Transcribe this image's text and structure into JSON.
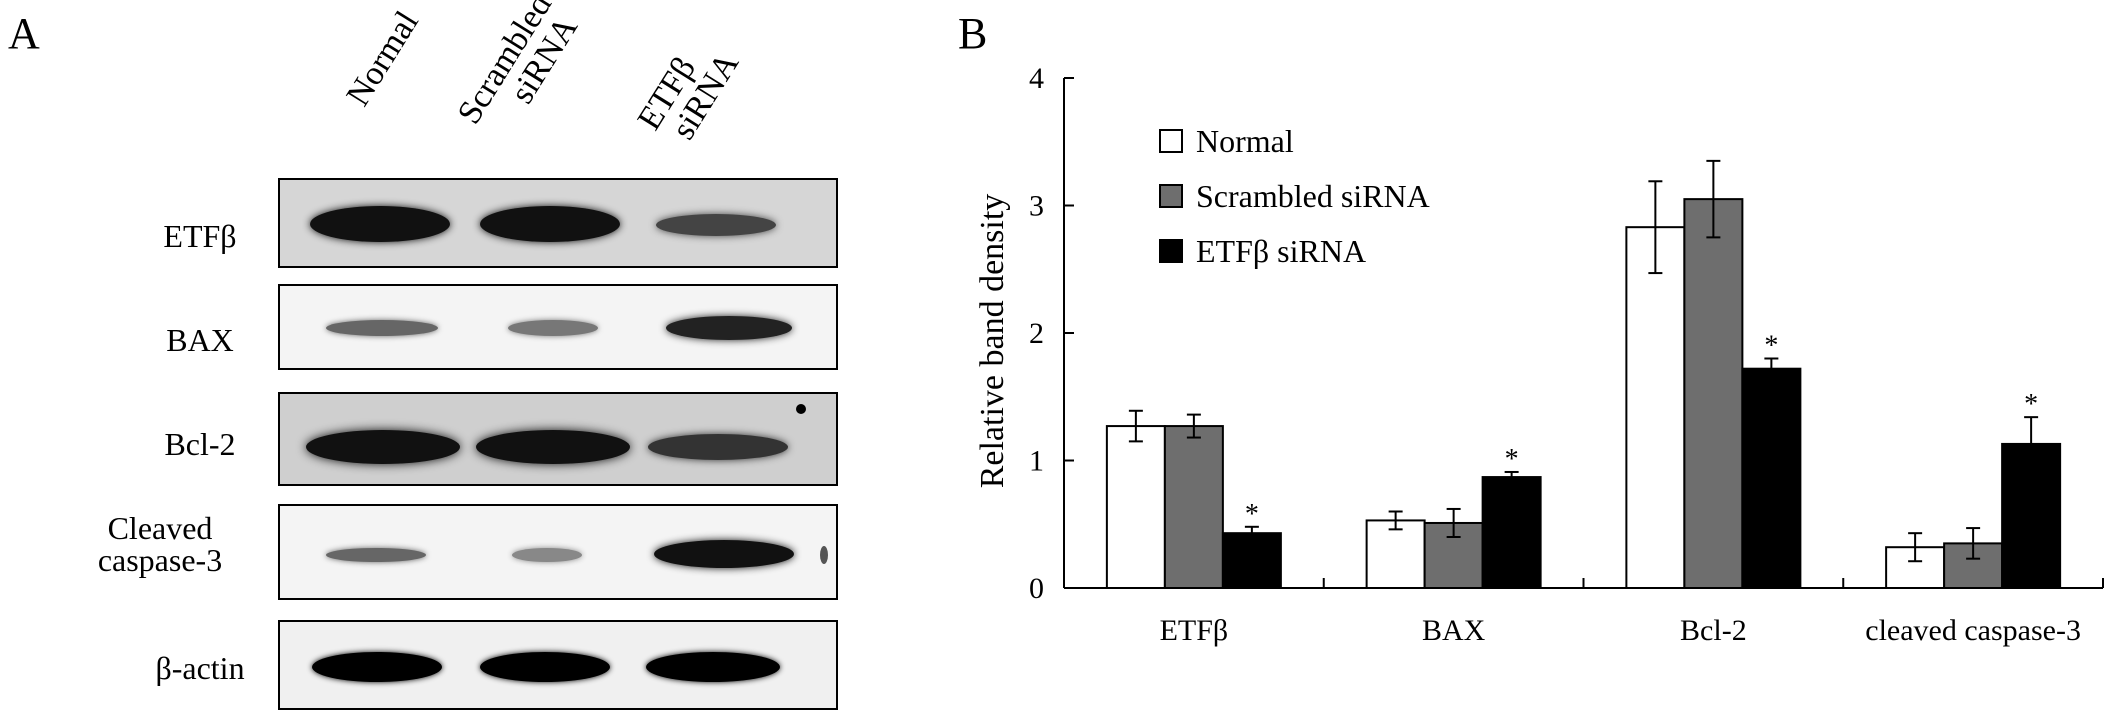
{
  "panel_a": {
    "label": "A",
    "lanes": [
      {
        "l1": "Normal",
        "l2": ""
      },
      {
        "l1": "Scrambled",
        "l2": "siRNA"
      },
      {
        "l1": "ETFβ",
        "l2": "siRNA"
      }
    ],
    "rows": [
      {
        "label": "ETFβ"
      },
      {
        "label": "BAX"
      },
      {
        "label": "Bcl-2"
      },
      {
        "label1": "Cleaved",
        "label2": "caspase-3"
      },
      {
        "label": "β-actin"
      }
    ]
  },
  "panel_b": {
    "label": "B"
  },
  "chart_data": {
    "type": "bar",
    "ylabel": "Relative band density",
    "ylim": [
      0,
      4
    ],
    "yticks": [
      0,
      1,
      2,
      3,
      4
    ],
    "categories": [
      "ETFβ",
      "BAX",
      "Bcl-2",
      "cleaved caspase-3"
    ],
    "series": [
      {
        "name": "Normal",
        "color": "#ffffff",
        "values": [
          1.27,
          0.53,
          2.83,
          0.32
        ],
        "errors": [
          0.12,
          0.07,
          0.36,
          0.11
        ]
      },
      {
        "name": "Scrambled siRNA",
        "color": "#6e6e6e",
        "values": [
          1.27,
          0.51,
          3.05,
          0.35
        ],
        "errors": [
          0.09,
          0.11,
          0.3,
          0.12
        ]
      },
      {
        "name": "ETFβ siRNA",
        "color": "#000000",
        "values": [
          0.43,
          0.87,
          1.72,
          1.13
        ],
        "errors": [
          0.05,
          0.04,
          0.08,
          0.21
        ]
      }
    ],
    "significance_marker": "*",
    "significant_series": "ETFβ siRNA",
    "legend_position": "top-left"
  }
}
